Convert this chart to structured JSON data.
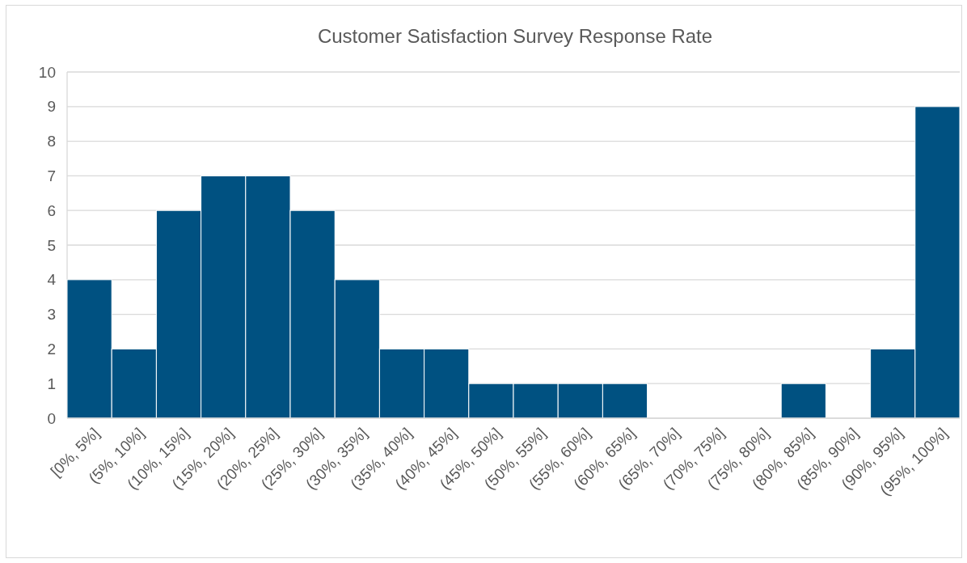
{
  "chart_data": {
    "type": "bar",
    "title": "Customer Satisfaction Survey Response Rate",
    "categories": [
      "[0%, 5%]",
      "(5%, 10%]",
      "(10%, 15%]",
      "(15%, 20%]",
      "(20%, 25%]",
      "(25%, 30%]",
      "(30%, 35%]",
      "(35%, 40%]",
      "(40%, 45%]",
      "(45%, 50%]",
      "(50%, 55%]",
      "(55%, 60%]",
      "(60%, 65%]",
      "(65%, 70%]",
      "(70%, 75%]",
      "(75%, 80%]",
      "(80%, 85%]",
      "(85%, 90%]",
      "(90%, 95%]",
      "(95%, 100%]"
    ],
    "values": [
      4,
      2,
      6,
      7,
      7,
      6,
      4,
      2,
      2,
      1,
      1,
      1,
      1,
      0,
      0,
      0,
      1,
      0,
      2,
      9
    ],
    "color": "#005181",
    "ylim": [
      0,
      10
    ],
    "yticks": [
      0,
      1,
      2,
      3,
      4,
      5,
      6,
      7,
      8,
      9,
      10
    ],
    "grid": "y"
  }
}
